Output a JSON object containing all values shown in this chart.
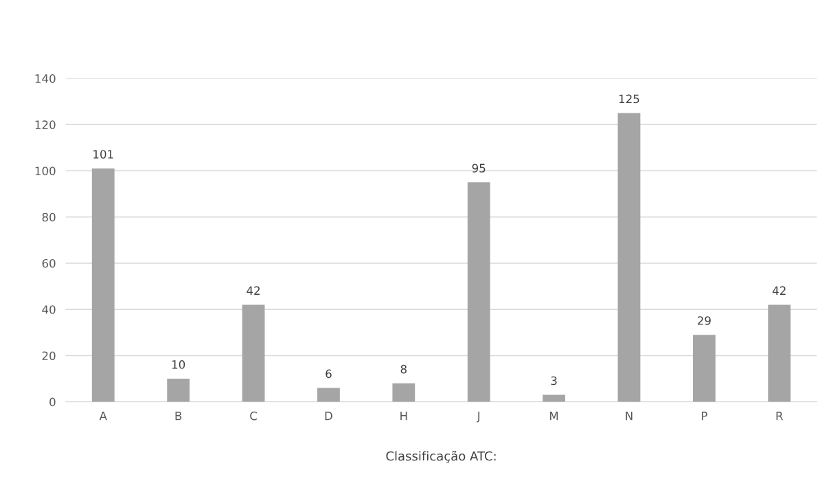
{
  "chart_data": {
    "type": "bar",
    "xlabel": "Classificação ATC:",
    "categories": [
      "A",
      "B",
      "C",
      "D",
      "H",
      "J",
      "M",
      "N",
      "P",
      "R"
    ],
    "values": [
      101,
      10,
      42,
      6,
      8,
      95,
      3,
      125,
      29,
      42
    ],
    "color": "#a5a5a5",
    "ylim": [
      0,
      140
    ],
    "yticks": [
      0,
      20,
      40,
      60,
      80,
      100,
      120,
      140
    ],
    "grid": "y",
    "data_labels": true
  }
}
